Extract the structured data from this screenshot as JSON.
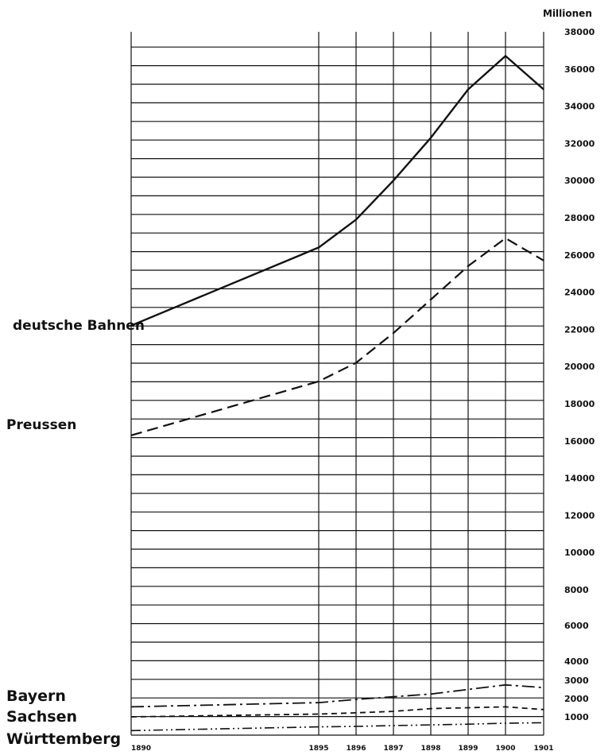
{
  "chart_data": {
    "type": "line",
    "title": "",
    "xlabel": "",
    "ylabel": "Millionen",
    "x": [
      1890,
      1895,
      1896,
      1897,
      1898,
      1899,
      1900,
      1901
    ],
    "x_tick_labels": [
      "1890",
      "1895",
      "1896",
      "1897",
      "1898",
      "1899",
      "1900",
      "1901"
    ],
    "y_tick_labels": [
      "1000",
      "2000",
      "3000",
      "4000",
      "6000",
      "8000",
      "10000",
      "12000",
      "14000",
      "16000",
      "18000",
      "20000",
      "22000",
      "24000",
      "26000",
      "28000",
      "30000",
      "32000",
      "34000",
      "36000",
      "38000"
    ],
    "grid": true,
    "legend": "left",
    "series": [
      {
        "name": "deutsche Bahnen",
        "values": [
          22200,
          26400,
          27900,
          30000,
          32300,
          34900,
          36700,
          34900
        ],
        "dash": "solid"
      },
      {
        "name": "Preussen",
        "values": [
          16300,
          19200,
          20200,
          21800,
          23600,
          25400,
          26900,
          25700
        ],
        "dash": "dashed"
      },
      {
        "name": "Bayern",
        "values": [
          1550,
          1780,
          1950,
          2100,
          2250,
          2500,
          2750,
          2600
        ],
        "dash": "dashdot"
      },
      {
        "name": "Sachsen",
        "values": [
          1000,
          1150,
          1220,
          1300,
          1450,
          1500,
          1550,
          1400
        ],
        "dash": "dashed-short"
      },
      {
        "name": "Württemberg",
        "values": [
          250,
          450,
          480,
          520,
          560,
          600,
          650,
          680
        ],
        "dash": "dash-dot-dot"
      }
    ]
  }
}
